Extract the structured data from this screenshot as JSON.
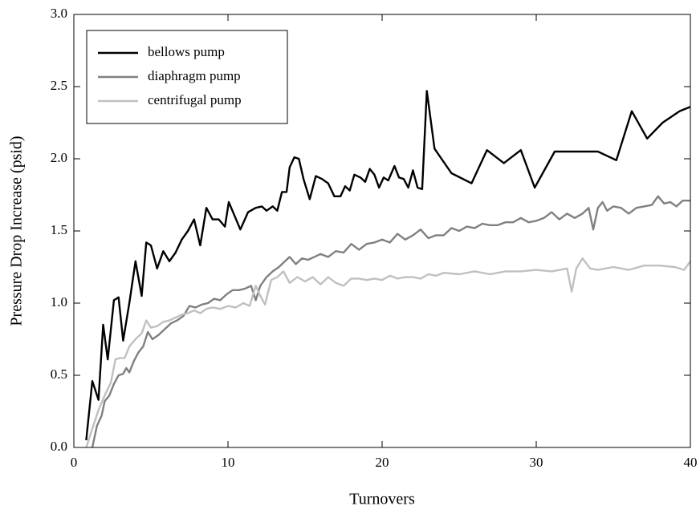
{
  "chart_data": {
    "type": "line",
    "xlabel": "Turnovers",
    "ylabel": "Pressure Drop Increase (psid)",
    "xlim": [
      0,
      40
    ],
    "xticks": [
      0,
      10,
      20,
      30,
      40
    ],
    "ylim": [
      0,
      3
    ],
    "yticks": [
      {
        "value": 0,
        "label": "0.0"
      },
      0.5,
      {
        "value": 1,
        "label": "1.0"
      },
      1.5,
      {
        "value": 2,
        "label": "2.0"
      },
      2.5,
      {
        "value": 3,
        "label": "3.0"
      }
    ],
    "legend": "upper left",
    "series": [
      {
        "name": "bellows pump",
        "color": "#000000",
        "x": [
          0.8,
          1.2,
          1.6,
          1.9,
          2.2,
          2.6,
          2.9,
          3.2,
          3.6,
          4.0,
          4.4,
          4.7,
          5.0,
          5.4,
          5.8,
          6.2,
          6.6,
          7.0,
          7.4,
          7.8,
          8.2,
          8.6,
          9.0,
          9.4,
          9.8,
          10.05,
          10.8,
          11.3,
          11.8,
          12.2,
          12.5,
          12.9,
          13.2,
          13.5,
          13.8,
          14.0,
          14.3,
          14.6,
          14.9,
          15.3,
          15.7,
          16.1,
          16.5,
          16.9,
          17.3,
          17.6,
          17.9,
          18.2,
          18.6,
          18.9,
          19.2,
          19.5,
          19.8,
          20.1,
          20.4,
          20.8,
          21.1,
          21.4,
          21.7,
          22.0,
          22.3,
          22.6,
          22.9,
          23.4,
          24.5,
          25.8,
          26.8,
          27.9,
          29.0,
          29.9,
          31.2,
          32.3,
          33.4,
          34.0,
          35.2,
          36.2,
          37.2,
          38.2,
          39.3,
          40.0
        ],
        "values": [
          0.05,
          0.46,
          0.33,
          0.85,
          0.61,
          1.02,
          1.04,
          0.74,
          1.0,
          1.29,
          1.05,
          1.42,
          1.4,
          1.24,
          1.36,
          1.29,
          1.35,
          1.44,
          1.5,
          1.58,
          1.4,
          1.66,
          1.58,
          1.58,
          1.53,
          1.7,
          1.51,
          1.63,
          1.66,
          1.67,
          1.64,
          1.67,
          1.64,
          1.77,
          1.77,
          1.94,
          2.01,
          2.0,
          1.86,
          1.72,
          1.88,
          1.86,
          1.83,
          1.74,
          1.74,
          1.81,
          1.78,
          1.89,
          1.87,
          1.84,
          1.93,
          1.89,
          1.8,
          1.87,
          1.85,
          1.95,
          1.87,
          1.86,
          1.8,
          1.92,
          1.8,
          1.79,
          2.47,
          2.07,
          1.9,
          1.83,
          2.06,
          1.97,
          2.06,
          1.8,
          2.05,
          2.05,
          2.05,
          2.05,
          1.99,
          2.33,
          2.14,
          2.25,
          2.33,
          2.36
        ]
      },
      {
        "name": "diaphragm pump",
        "color": "#808080",
        "x": [
          1.2,
          1.5,
          1.8,
          2.0,
          2.3,
          2.6,
          2.9,
          3.2,
          3.4,
          3.6,
          3.9,
          4.2,
          4.5,
          4.8,
          5.1,
          5.5,
          5.9,
          6.3,
          6.7,
          7.1,
          7.5,
          7.9,
          8.3,
          8.7,
          9.1,
          9.5,
          9.9,
          10.3,
          10.7,
          11.1,
          11.5,
          11.8,
          12.1,
          12.5,
          12.9,
          13.3,
          13.7,
          14.0,
          14.4,
          14.8,
          15.2,
          15.6,
          16.0,
          16.5,
          17.0,
          17.5,
          18.0,
          18.5,
          19.0,
          19.5,
          20.0,
          20.5,
          21.0,
          21.5,
          22.0,
          22.5,
          23.0,
          23.5,
          24.0,
          24.5,
          25.0,
          25.5,
          26.0,
          26.5,
          27.0,
          27.5,
          28.0,
          28.5,
          29.0,
          29.5,
          30.0,
          30.5,
          31.0,
          31.5,
          32.0,
          32.5,
          33.0,
          33.4,
          33.7,
          34.0,
          34.3,
          34.6,
          35.0,
          35.5,
          36.0,
          36.5,
          37.0,
          37.5,
          37.9,
          38.3,
          38.7,
          39.1,
          39.5,
          40.0
        ],
        "values": [
          0.0,
          0.15,
          0.22,
          0.32,
          0.36,
          0.44,
          0.5,
          0.51,
          0.55,
          0.52,
          0.6,
          0.66,
          0.7,
          0.8,
          0.75,
          0.78,
          0.82,
          0.86,
          0.88,
          0.91,
          0.98,
          0.97,
          0.99,
          1.0,
          1.03,
          1.02,
          1.06,
          1.09,
          1.09,
          1.1,
          1.12,
          1.02,
          1.12,
          1.18,
          1.22,
          1.25,
          1.29,
          1.32,
          1.27,
          1.31,
          1.3,
          1.32,
          1.34,
          1.32,
          1.36,
          1.35,
          1.41,
          1.37,
          1.41,
          1.42,
          1.44,
          1.42,
          1.48,
          1.44,
          1.47,
          1.51,
          1.45,
          1.47,
          1.47,
          1.52,
          1.5,
          1.53,
          1.52,
          1.55,
          1.54,
          1.54,
          1.56,
          1.56,
          1.59,
          1.56,
          1.57,
          1.59,
          1.63,
          1.58,
          1.62,
          1.59,
          1.62,
          1.66,
          1.51,
          1.66,
          1.7,
          1.64,
          1.67,
          1.66,
          1.62,
          1.66,
          1.67,
          1.68,
          1.74,
          1.69,
          1.7,
          1.67,
          1.71,
          1.71
        ]
      },
      {
        "name": "centrifugal pump",
        "color": "#c0c0c0",
        "x": [
          0.8,
          1.2,
          1.6,
          2.0,
          2.4,
          2.7,
          3.0,
          3.3,
          3.6,
          4.0,
          4.4,
          4.7,
          5.0,
          5.4,
          5.8,
          6.2,
          6.6,
          7.0,
          7.4,
          7.8,
          8.2,
          8.6,
          9.0,
          9.5,
          10.0,
          10.5,
          11.0,
          11.4,
          11.8,
          12.1,
          12.4,
          12.8,
          13.2,
          13.6,
          14.0,
          14.5,
          15.0,
          15.5,
          16.0,
          16.5,
          17.0,
          17.5,
          18.0,
          18.5,
          19.0,
          19.5,
          20.0,
          20.5,
          21.0,
          21.5,
          22.0,
          22.5,
          23.0,
          23.5,
          24.0,
          25.0,
          26.0,
          27.0,
          28.0,
          29.0,
          30.0,
          31.0,
          32.0,
          32.3,
          32.6,
          33.0,
          33.5,
          34.0,
          35.0,
          36.0,
          37.0,
          38.0,
          39.0,
          39.6,
          40.0
        ],
        "values": [
          0.0,
          0.13,
          0.26,
          0.36,
          0.45,
          0.61,
          0.62,
          0.62,
          0.7,
          0.75,
          0.79,
          0.88,
          0.83,
          0.84,
          0.87,
          0.88,
          0.9,
          0.92,
          0.93,
          0.95,
          0.93,
          0.96,
          0.97,
          0.96,
          0.98,
          0.97,
          1.0,
          0.98,
          1.12,
          1.05,
          0.99,
          1.16,
          1.18,
          1.22,
          1.14,
          1.18,
          1.15,
          1.18,
          1.13,
          1.18,
          1.14,
          1.12,
          1.17,
          1.17,
          1.16,
          1.17,
          1.16,
          1.19,
          1.17,
          1.18,
          1.18,
          1.17,
          1.2,
          1.19,
          1.21,
          1.2,
          1.22,
          1.2,
          1.22,
          1.22,
          1.23,
          1.22,
          1.24,
          1.08,
          1.24,
          1.31,
          1.24,
          1.23,
          1.25,
          1.23,
          1.26,
          1.26,
          1.25,
          1.23,
          1.29
        ]
      }
    ]
  }
}
